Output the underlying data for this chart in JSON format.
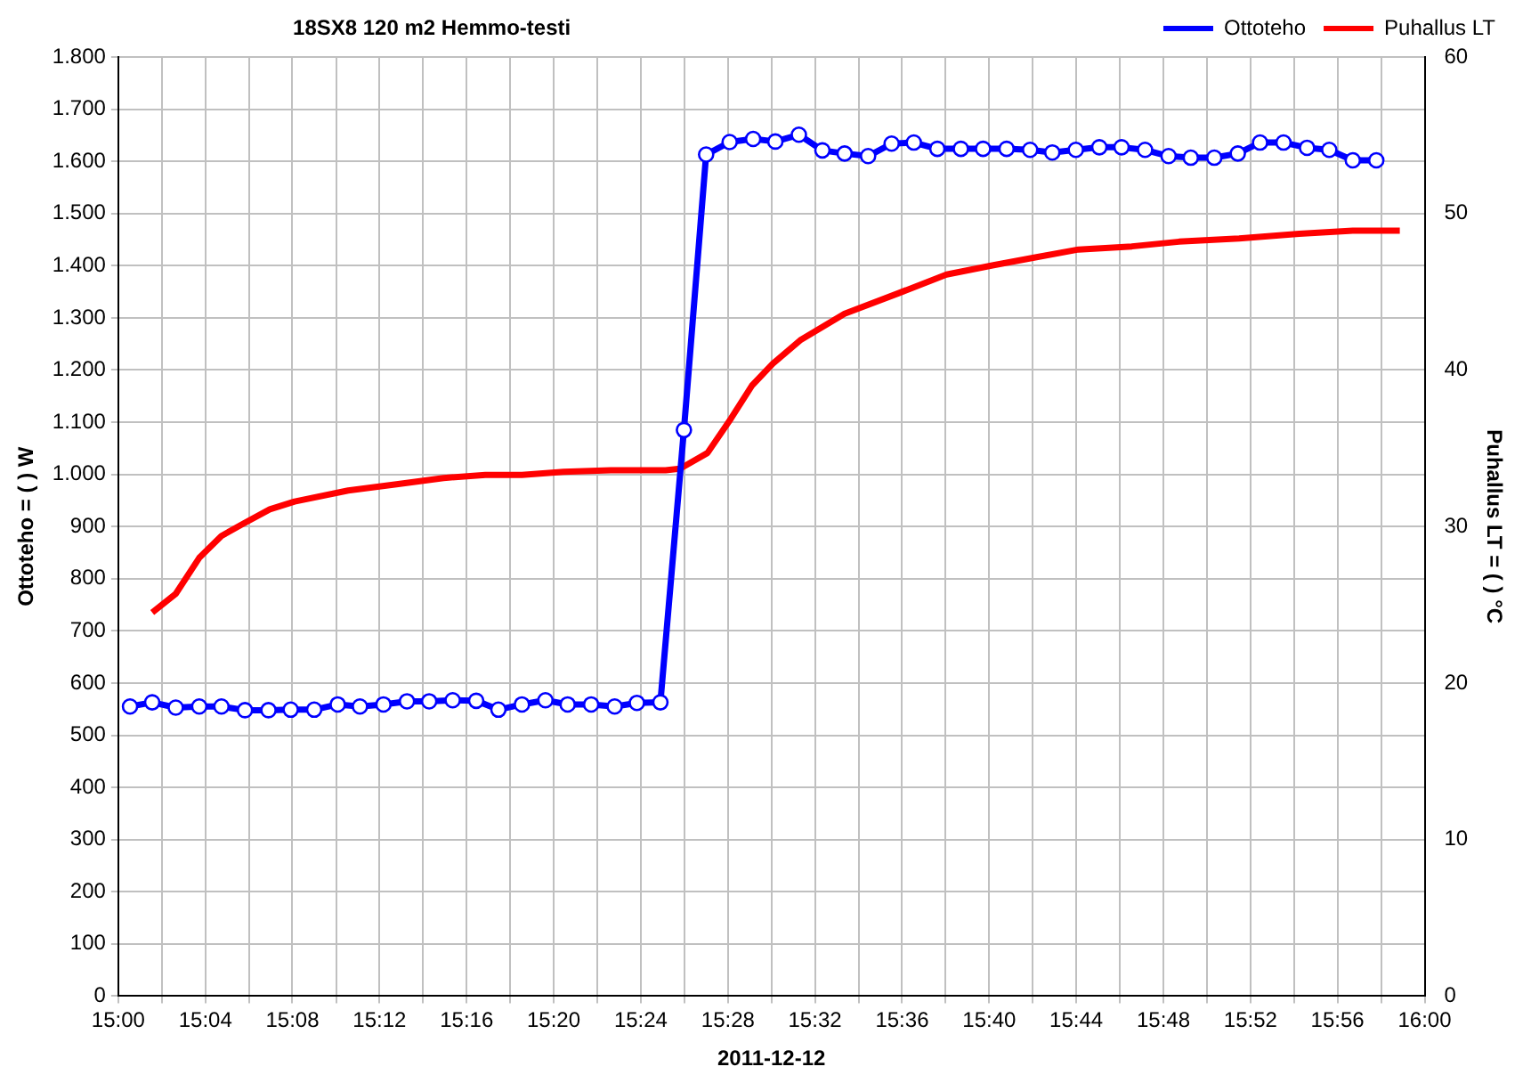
{
  "chart_data": {
    "type": "line",
    "title": "18SX8 120 m2 Hemmo-testi",
    "xlabel": "2011-12-12",
    "ylabel": "Ottoteho = ( ) W",
    "y2label": "Puhallus LT = ( ) °C",
    "xlim": [
      15,
      16
    ],
    "xticks": [
      {
        "value": 15,
        "label": "15:00"
      },
      {
        "value": 15.0333,
        "label": null
      },
      {
        "value": 15.0667,
        "label": "15:04"
      },
      {
        "value": 15.1,
        "label": null
      },
      {
        "value": 15.1333,
        "label": "15:08"
      },
      {
        "value": 15.1667,
        "label": null
      },
      {
        "value": 15.2,
        "label": "15:12"
      },
      {
        "value": 15.2333,
        "label": null
      },
      {
        "value": 15.2667,
        "label": "15:16"
      },
      {
        "value": 15.3,
        "label": null
      },
      {
        "value": 15.3333,
        "label": "15:20"
      },
      {
        "value": 15.3667,
        "label": null
      },
      {
        "value": 15.4,
        "label": "15:24"
      },
      {
        "value": 15.4333,
        "label": null
      },
      {
        "value": 15.4667,
        "label": "15:28"
      },
      {
        "value": 15.5,
        "label": null
      },
      {
        "value": 15.5333,
        "label": "15:32"
      },
      {
        "value": 15.5667,
        "label": null
      },
      {
        "value": 15.6,
        "label": "15:36"
      },
      {
        "value": 15.6333,
        "label": null
      },
      {
        "value": 15.6667,
        "label": "15:40"
      },
      {
        "value": 15.7,
        "label": null
      },
      {
        "value": 15.7333,
        "label": "15:44"
      },
      {
        "value": 15.7667,
        "label": null
      },
      {
        "value": 15.8,
        "label": "15:48"
      },
      {
        "value": 15.8333,
        "label": null
      },
      {
        "value": 15.8667,
        "label": "15:52"
      },
      {
        "value": 15.9,
        "label": null
      },
      {
        "value": 15.9333,
        "label": "15:56"
      },
      {
        "value": 15.9667,
        "label": null
      },
      {
        "value": 16,
        "label": "16:00"
      }
    ],
    "ylim": [
      0,
      1800
    ],
    "yticks": [
      0,
      100,
      200,
      300,
      400,
      500,
      600,
      700,
      800,
      900,
      {
        "value": 1000,
        "label": "1.000"
      },
      {
        "value": 1100,
        "label": "1.100"
      },
      {
        "value": 1200,
        "label": "1.200"
      },
      {
        "value": 1300,
        "label": "1.300"
      },
      {
        "value": 1400,
        "label": "1.400"
      },
      {
        "value": 1500,
        "label": "1.500"
      },
      {
        "value": 1600,
        "label": "1.600"
      },
      {
        "value": 1700,
        "label": "1.700"
      },
      {
        "value": 1800,
        "label": "1.800"
      }
    ],
    "y2lim": [
      0,
      60
    ],
    "y2ticks": [
      0,
      10,
      20,
      30,
      40,
      50,
      60
    ],
    "grid": true,
    "legend": "top right",
    "series": [
      {
        "name": "Ottoteho",
        "color": "#0000ff",
        "marker": "circle",
        "x": [
          15.009,
          15.026,
          15.044,
          15.062,
          15.079,
          15.097,
          15.115,
          15.132,
          15.15,
          15.168,
          15.185,
          15.203,
          15.221,
          15.238,
          15.256,
          15.274,
          15.291,
          15.309,
          15.327,
          15.344,
          15.362,
          15.38,
          15.397,
          15.415,
          15.433,
          15.45,
          15.468,
          15.486,
          15.503,
          15.521,
          15.539,
          15.556,
          15.574,
          15.592,
          15.609,
          15.627,
          15.645,
          15.662,
          15.68,
          15.698,
          15.715,
          15.733,
          15.751,
          15.768,
          15.786,
          15.804,
          15.821,
          15.839,
          15.857,
          15.874,
          15.892,
          15.91,
          15.927,
          15.945,
          15.963
        ],
        "values": [
          555,
          563,
          553,
          555,
          555,
          548,
          548,
          549,
          549,
          559,
          555,
          559,
          565,
          565,
          567,
          566,
          549,
          559,
          567,
          559,
          559,
          555,
          562,
          563,
          1085,
          1613,
          1637,
          1643,
          1638,
          1651,
          1621,
          1615,
          1610,
          1634,
          1636,
          1624,
          1624,
          1624,
          1624,
          1622,
          1617,
          1622,
          1627,
          1627,
          1622,
          1610,
          1607,
          1607,
          1615,
          1636,
          1636,
          1626,
          1622,
          1602,
          1602
        ]
      },
      {
        "name": "Puhallus LT",
        "color": "#ff0000",
        "marker": "none",
        "axis": "y2",
        "x": [
          15.026,
          15.044,
          15.062,
          15.079,
          15.096,
          15.116,
          15.135,
          15.176,
          15.213,
          15.249,
          15.281,
          15.309,
          15.341,
          15.377,
          15.419,
          15.43,
          15.451,
          15.469,
          15.485,
          15.501,
          15.522,
          15.556,
          15.597,
          15.634,
          15.67,
          15.702,
          15.735,
          15.776,
          15.812,
          15.858,
          15.904,
          15.945,
          15.981
        ],
        "values": [
          24.5,
          25.7,
          28.0,
          29.4,
          30.2,
          31.1,
          31.6,
          32.3,
          32.7,
          33.1,
          33.3,
          33.3,
          33.5,
          33.6,
          33.6,
          33.7,
          34.7,
          36.9,
          39.0,
          40.4,
          41.9,
          43.6,
          44.9,
          46.1,
          46.7,
          47.2,
          47.7,
          47.9,
          48.2,
          48.4,
          48.7,
          48.9,
          48.9
        ]
      }
    ]
  }
}
